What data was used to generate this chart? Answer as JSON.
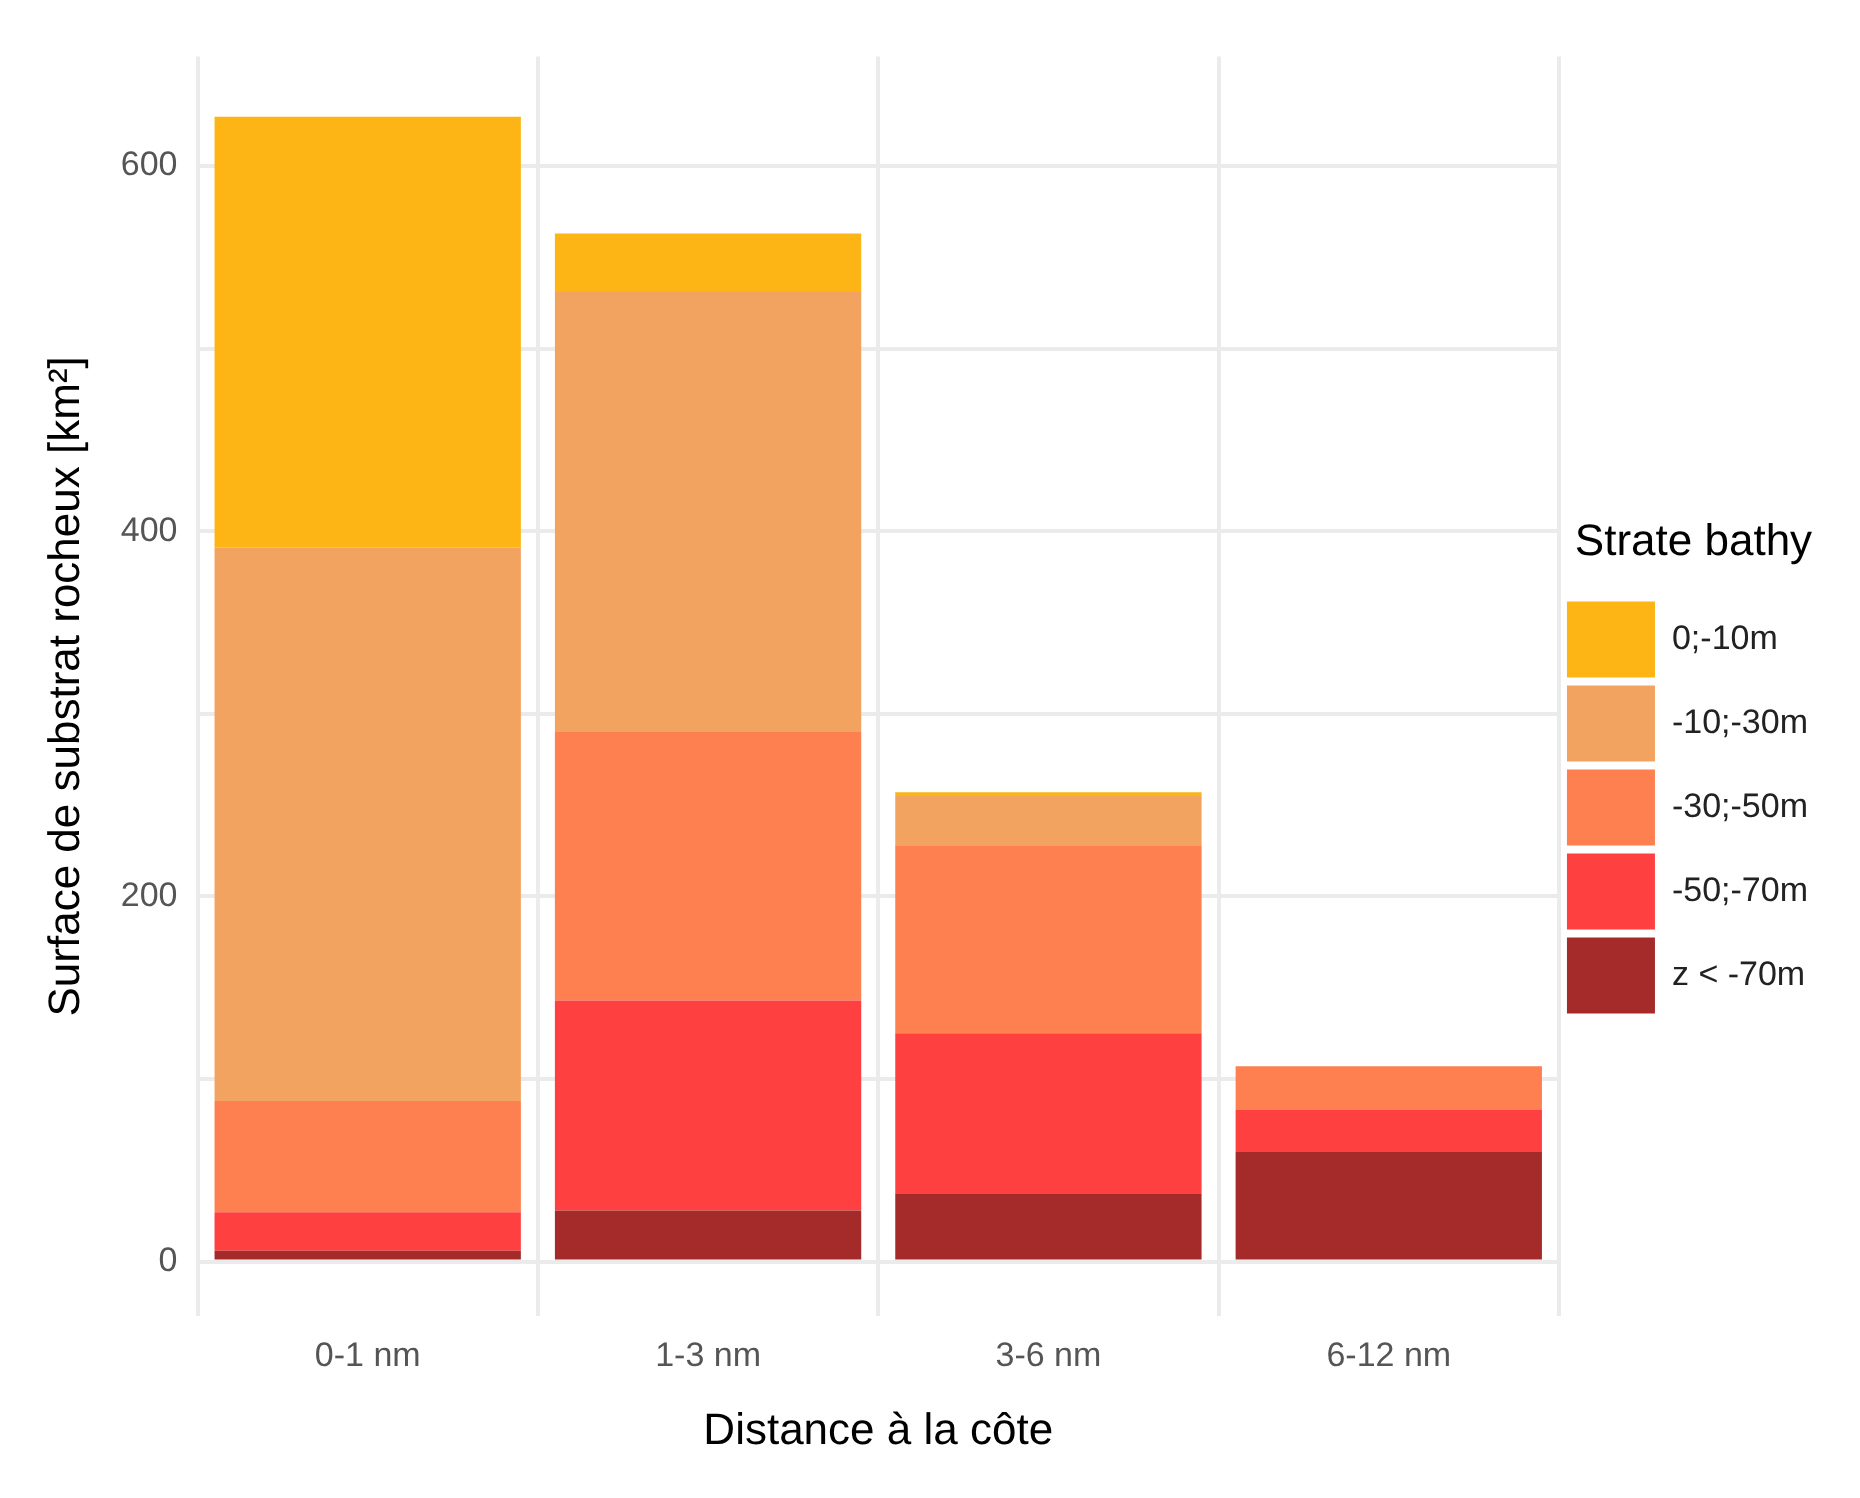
{
  "chart_data": {
    "type": "bar",
    "stacked": true,
    "xlabel": "Distance à la côte",
    "ylabel": "Surface de substrat rocheux [km²]",
    "legend_title": "Strate bathy",
    "legend": "right",
    "grid": true,
    "categories": [
      "0-1 nm",
      "1-3 nm",
      "3-6 nm",
      "6-12 nm"
    ],
    "ylim": [
      -30,
      660
    ],
    "yticks": [
      0,
      {
        "value": 100,
        "label": null
      },
      200,
      {
        "value": 300,
        "label": null
      },
      400,
      {
        "value": 500,
        "label": null
      },
      600
    ],
    "series": [
      {
        "name": "z < -70m",
        "color": "#a52a2a",
        "values": [
          6,
          28,
          37,
          60
        ]
      },
      {
        "name": "-50;-70m",
        "color": "#fe4040",
        "values": [
          21,
          115,
          88,
          23
        ]
      },
      {
        "name": "-30;-50m",
        "color": "#fe7f50",
        "values": [
          61,
          147,
          103,
          24
        ]
      },
      {
        "name": "-10;-30m",
        "color": "#f2a35f",
        "values": [
          303,
          241,
          27,
          0
        ]
      },
      {
        "name": "0;-10m",
        "color": "#fdb515",
        "values": [
          236,
          32,
          2,
          0
        ]
      }
    ]
  }
}
